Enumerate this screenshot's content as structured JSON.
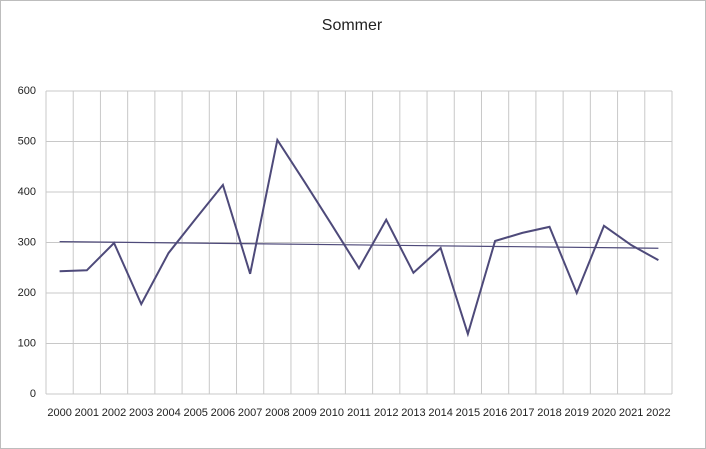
{
  "chart_data": {
    "type": "line",
    "title": "Sommer",
    "categories": [
      "2000",
      "2001",
      "2002",
      "2003",
      "2004",
      "2005",
      "2006",
      "2007",
      "2008",
      "2009",
      "2010",
      "2011",
      "2012",
      "2013",
      "2014",
      "2015",
      "2016",
      "2017",
      "2018",
      "2019",
      "2020",
      "2021",
      "2022"
    ],
    "values": [
      243,
      245,
      299,
      178,
      279,
      347,
      414,
      238,
      503,
      420,
      335,
      249,
      345,
      240,
      289,
      119,
      303,
      319,
      331,
      200,
      333,
      295,
      265
    ],
    "color": "#4e4a7a",
    "trendline": true,
    "ylim": [
      0,
      600
    ],
    "yticks": [
      0,
      100,
      200,
      300,
      400,
      500,
      600
    ],
    "grid": true
  }
}
